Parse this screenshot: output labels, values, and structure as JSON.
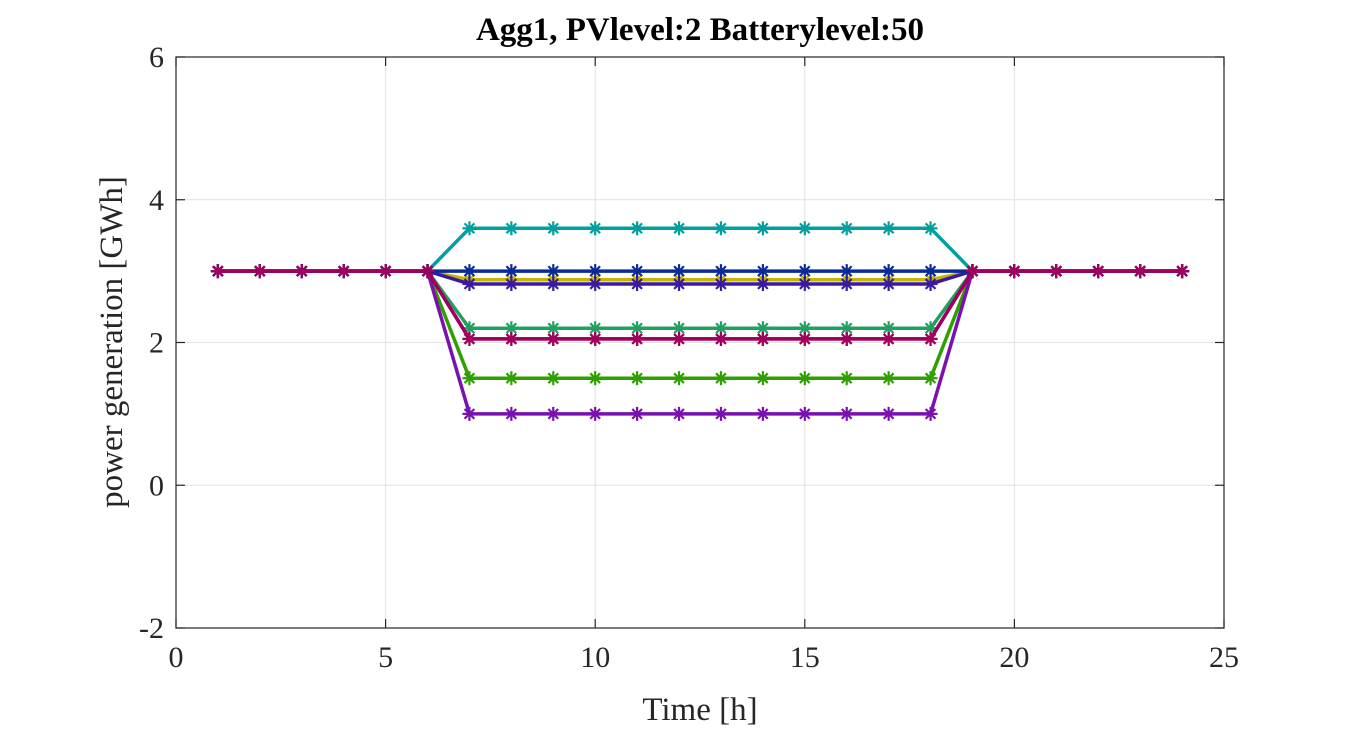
{
  "chart_data": {
    "type": "line",
    "title": "Agg1, PVlevel:2 Batterylevel:50",
    "xlabel": "Time [h]",
    "ylabel": "power generation [GWh]",
    "xlim": [
      0,
      25
    ],
    "ylim": [
      -2,
      6
    ],
    "xticks": [
      0,
      5,
      10,
      15,
      20,
      25
    ],
    "yticks": [
      -2,
      0,
      2,
      4,
      6
    ],
    "xtick_labels": [
      "0",
      "5",
      "10",
      "15",
      "20",
      "25"
    ],
    "ytick_labels": [
      "-2",
      "0",
      "2",
      "4",
      "6"
    ],
    "grid": true,
    "marker": "asterisk",
    "x": [
      1,
      2,
      3,
      4,
      5,
      6,
      7,
      8,
      9,
      10,
      11,
      12,
      13,
      14,
      15,
      16,
      17,
      18,
      19,
      20,
      21,
      22,
      23,
      24
    ],
    "series": [
      {
        "color": "#00a0a0",
        "values": [
          3,
          3,
          3,
          3,
          3,
          3,
          3.6,
          3.6,
          3.6,
          3.6,
          3.6,
          3.6,
          3.6,
          3.6,
          3.6,
          3.6,
          3.6,
          3.6,
          3,
          3,
          3,
          3,
          3,
          3
        ]
      },
      {
        "color": "#c8b400",
        "values": [
          3,
          3,
          3,
          3,
          3,
          3,
          2.88,
          2.88,
          2.88,
          2.88,
          2.88,
          2.88,
          2.88,
          2.88,
          2.88,
          2.88,
          2.88,
          2.88,
          3,
          3,
          3,
          3,
          3,
          3
        ]
      },
      {
        "color": "#20a060",
        "values": [
          3,
          3,
          3,
          3,
          3,
          3,
          2.2,
          2.2,
          2.2,
          2.2,
          2.2,
          2.2,
          2.2,
          2.2,
          2.2,
          2.2,
          2.2,
          2.2,
          3,
          3,
          3,
          3,
          3,
          3
        ]
      },
      {
        "color": "#30a000",
        "values": [
          3,
          3,
          3,
          3,
          3,
          3,
          1.5,
          1.5,
          1.5,
          1.5,
          1.5,
          1.5,
          1.5,
          1.5,
          1.5,
          1.5,
          1.5,
          1.5,
          3,
          3,
          3,
          3,
          3,
          3
        ]
      },
      {
        "color": "#7a10b0",
        "values": [
          3,
          3,
          3,
          3,
          3,
          3,
          1,
          1,
          1,
          1,
          1,
          1,
          1,
          1,
          1,
          1,
          1,
          1,
          3,
          3,
          3,
          3,
          3,
          3
        ]
      },
      {
        "color": "#b0006a",
        "values": [
          3,
          3,
          3,
          3,
          3,
          3,
          2.05,
          2.05,
          2.05,
          2.05,
          2.05,
          2.05,
          2.05,
          2.05,
          2.05,
          2.05,
          2.05,
          2.05,
          3,
          3,
          3,
          3,
          3,
          3
        ]
      },
      {
        "color": "#3a1aa0",
        "values": [
          3,
          3,
          3,
          3,
          3,
          3,
          2.82,
          2.82,
          2.82,
          2.82,
          2.82,
          2.82,
          2.82,
          2.82,
          2.82,
          2.82,
          2.82,
          2.82,
          3,
          3,
          3,
          3,
          3,
          3
        ]
      },
      {
        "color": "#0a2a9a",
        "values": [
          3,
          3,
          3,
          3,
          3,
          3,
          3,
          3,
          3,
          3,
          3,
          3,
          3,
          3,
          3,
          3,
          3,
          3,
          3,
          3,
          3,
          3,
          3,
          3
        ]
      },
      {
        "color": "#a0005c",
        "values": [
          3,
          3,
          3,
          3,
          3,
          3,
          2.05,
          2.05,
          2.05,
          2.05,
          2.05,
          2.05,
          2.05,
          2.05,
          2.05,
          2.05,
          2.05,
          2.05,
          3,
          3,
          3,
          3,
          3,
          3
        ]
      }
    ]
  }
}
